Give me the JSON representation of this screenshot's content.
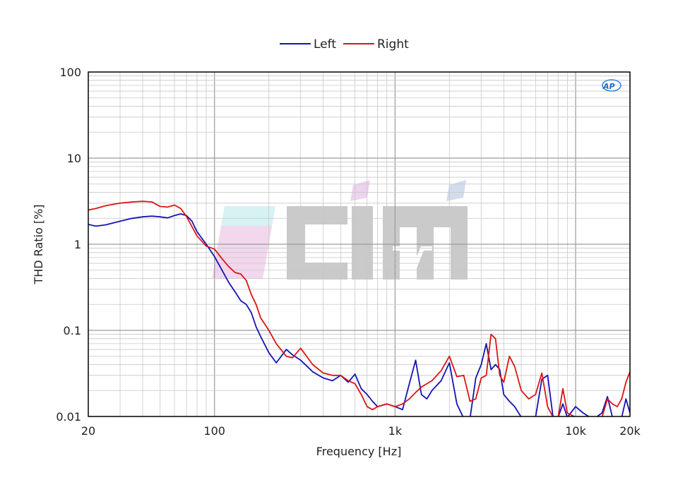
{
  "chart_data": {
    "type": "line",
    "xlabel": "Frequency [Hz]",
    "ylabel": "THD Ratio [%]",
    "x_scale": "log",
    "y_scale": "log",
    "xlim": [
      20,
      20000
    ],
    "ylim": [
      0.01,
      100
    ],
    "x_tick_labels": [
      {
        "value": 20,
        "label": "20"
      },
      {
        "value": 100,
        "label": "100"
      },
      {
        "value": 1000,
        "label": "1k"
      },
      {
        "value": 10000,
        "label": "10k"
      },
      {
        "value": 20000,
        "label": "20k"
      }
    ],
    "y_tick_labels": [
      {
        "value": 100,
        "label": "100"
      },
      {
        "value": 10,
        "label": "10"
      },
      {
        "value": 1,
        "label": "1"
      },
      {
        "value": 0.1,
        "label": "0.1"
      },
      {
        "value": 0.01,
        "label": "0.01"
      }
    ],
    "grid": true,
    "legend_position": "top-center",
    "series": [
      {
        "name": "Left",
        "color": "#1414b4",
        "x": [
          20,
          22,
          25,
          30,
          35,
          40,
          45,
          50,
          55,
          60,
          65,
          70,
          75,
          80,
          90,
          100,
          110,
          120,
          130,
          140,
          150,
          160,
          170,
          180,
          200,
          220,
          250,
          270,
          300,
          350,
          400,
          450,
          500,
          550,
          600,
          650,
          700,
          750,
          800,
          900,
          1000,
          1100,
          1200,
          1300,
          1400,
          1500,
          1600,
          1800,
          2000,
          2200,
          2400,
          2600,
          2800,
          3000,
          3200,
          3400,
          3600,
          3800,
          4000,
          4300,
          4600,
          5000,
          5500,
          6000,
          6500,
          7000,
          7500,
          8000,
          8500,
          9000,
          10000,
          11000,
          12000,
          13000,
          14000,
          15000,
          16000,
          17000,
          18000,
          19000,
          20000
        ],
        "y": [
          1.7,
          1.62,
          1.68,
          1.85,
          2.0,
          2.08,
          2.12,
          2.08,
          2.02,
          2.15,
          2.25,
          2.15,
          1.85,
          1.4,
          1.0,
          0.72,
          0.5,
          0.36,
          0.28,
          0.22,
          0.2,
          0.16,
          0.11,
          0.085,
          0.055,
          0.042,
          0.06,
          0.052,
          0.045,
          0.033,
          0.028,
          0.026,
          0.03,
          0.025,
          0.031,
          0.021,
          0.018,
          0.015,
          0.013,
          0.014,
          0.013,
          0.012,
          0.024,
          0.045,
          0.018,
          0.016,
          0.02,
          0.026,
          0.042,
          0.014,
          0.0095,
          0.0095,
          0.028,
          0.04,
          0.07,
          0.035,
          0.04,
          0.035,
          0.018,
          0.015,
          0.013,
          0.0098,
          0.0098,
          0.0098,
          0.027,
          0.03,
          0.0098,
          0.0098,
          0.014,
          0.0098,
          0.013,
          0.011,
          0.0098,
          0.0098,
          0.011,
          0.017,
          0.0098,
          0.0098,
          0.0098,
          0.016,
          0.011
        ]
      },
      {
        "name": "Right",
        "color": "#dc1414",
        "x": [
          20,
          22,
          25,
          30,
          35,
          40,
          45,
          50,
          55,
          60,
          65,
          70,
          75,
          80,
          90,
          100,
          110,
          120,
          130,
          140,
          150,
          160,
          170,
          180,
          200,
          220,
          250,
          270,
          300,
          350,
          400,
          450,
          500,
          550,
          600,
          650,
          700,
          750,
          800,
          900,
          1000,
          1100,
          1200,
          1300,
          1400,
          1500,
          1600,
          1800,
          2000,
          2200,
          2400,
          2600,
          2800,
          3000,
          3200,
          3400,
          3600,
          3800,
          4000,
          4300,
          4600,
          5000,
          5500,
          6000,
          6500,
          7000,
          7500,
          8000,
          8500,
          9000,
          10000,
          11000,
          12000,
          13000,
          14000,
          15000,
          16000,
          17000,
          18000,
          19000,
          20000
        ],
        "y": [
          2.5,
          2.6,
          2.8,
          3.0,
          3.1,
          3.15,
          3.1,
          2.75,
          2.7,
          2.85,
          2.6,
          2.1,
          1.6,
          1.25,
          0.95,
          0.88,
          0.68,
          0.55,
          0.47,
          0.45,
          0.38,
          0.26,
          0.2,
          0.14,
          0.1,
          0.07,
          0.05,
          0.048,
          0.062,
          0.04,
          0.032,
          0.03,
          0.03,
          0.026,
          0.024,
          0.018,
          0.013,
          0.012,
          0.013,
          0.014,
          0.013,
          0.014,
          0.016,
          0.019,
          0.022,
          0.024,
          0.026,
          0.034,
          0.05,
          0.029,
          0.03,
          0.015,
          0.016,
          0.028,
          0.03,
          0.09,
          0.08,
          0.03,
          0.025,
          0.05,
          0.038,
          0.02,
          0.016,
          0.018,
          0.032,
          0.013,
          0.0098,
          0.0098,
          0.021,
          0.011,
          0.0098,
          0.0098,
          0.0098,
          0.0098,
          0.0098,
          0.016,
          0.014,
          0.013,
          0.016,
          0.025,
          0.033
        ]
      }
    ]
  }
}
